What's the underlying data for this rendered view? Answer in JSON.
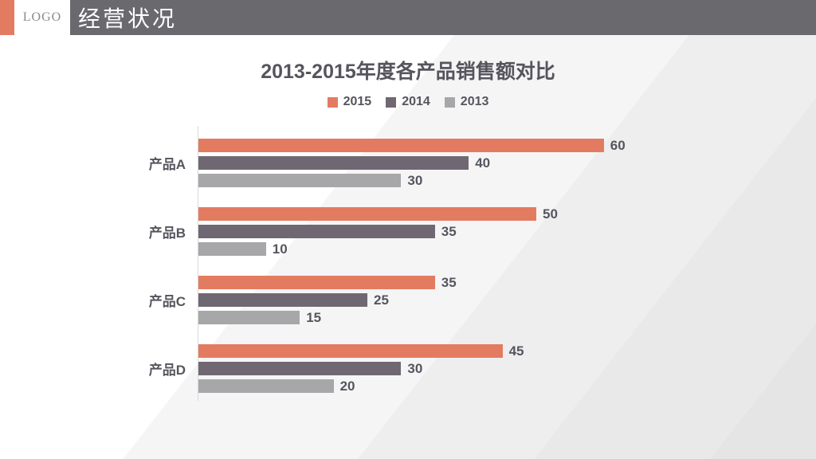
{
  "header": {
    "logo_text": "LOGO",
    "title": "经营状况"
  },
  "chart_data": {
    "type": "bar",
    "orientation": "horizontal",
    "title": "2013-2015年度各产品销售额对比",
    "xlabel": "",
    "ylabel": "",
    "categories": [
      "产品A",
      "产品B",
      "产品C",
      "产品D"
    ],
    "series": [
      {
        "name": "2015",
        "color": "#E37B61",
        "values": [
          60,
          50,
          35,
          45
        ]
      },
      {
        "name": "2014",
        "color": "#6F6873",
        "values": [
          40,
          35,
          25,
          30
        ]
      },
      {
        "name": "2013",
        "color": "#A7A6A8",
        "values": [
          30,
          10,
          15,
          20
        ]
      }
    ],
    "xlim": [
      0,
      64
    ],
    "value_labels": true,
    "legend_position": "top",
    "grid": false
  },
  "colors": {
    "accent": "#E37B61",
    "header_bar": "#6A696E",
    "text": "#56555E",
    "logo_text": "#8B8B8B",
    "axis": "#D9D9D9"
  }
}
